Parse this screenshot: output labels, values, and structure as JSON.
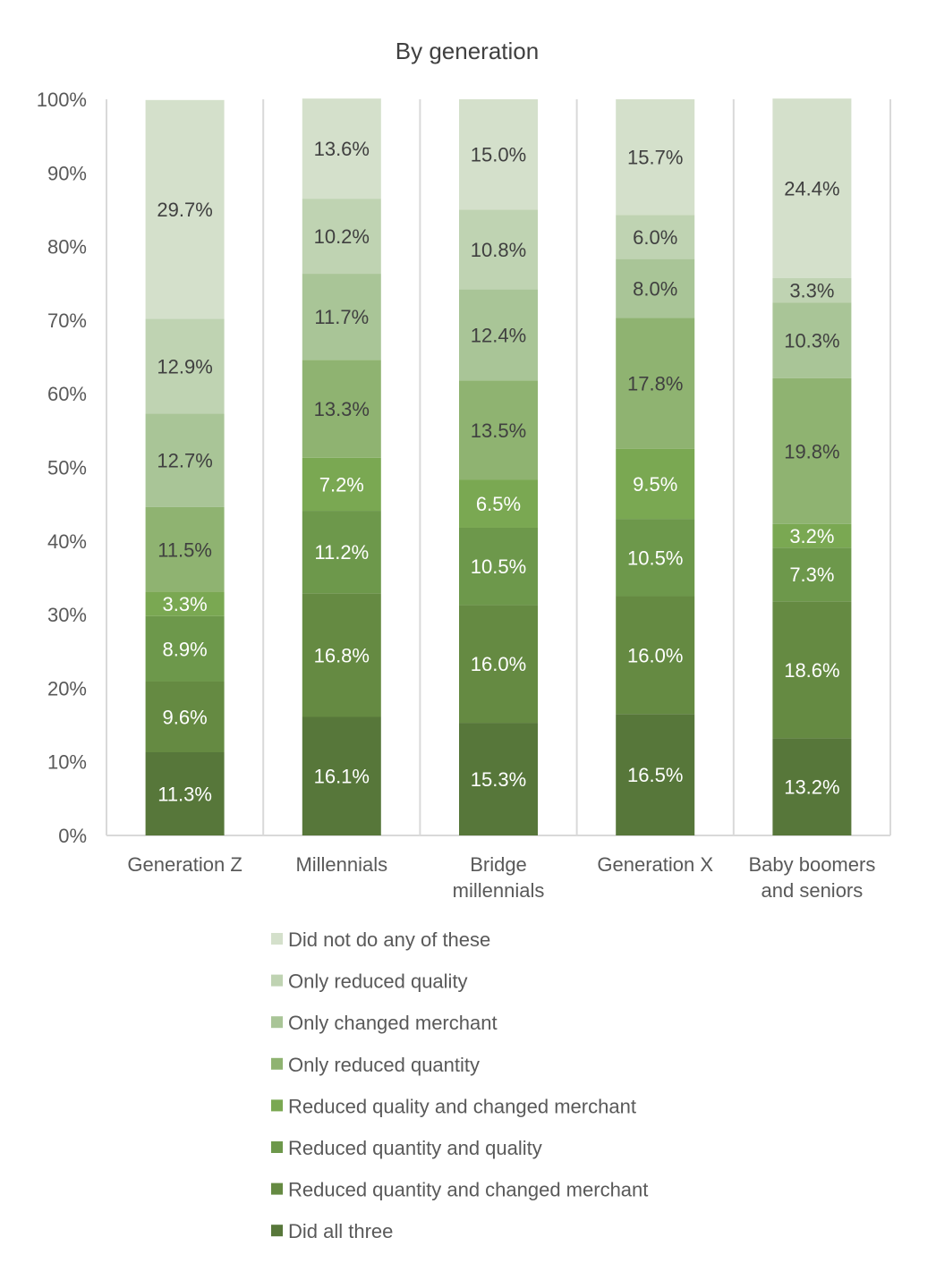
{
  "chart_data": {
    "type": "bar",
    "stacked": true,
    "orientation": "vertical",
    "title": "By generation",
    "xlabel": "",
    "ylabel": "",
    "ylim": [
      0,
      100
    ],
    "y_ticks": [
      "0%",
      "10%",
      "20%",
      "30%",
      "40%",
      "50%",
      "60%",
      "70%",
      "80%",
      "90%",
      "100%"
    ],
    "categories": [
      [
        "Generation Z"
      ],
      [
        "Millennials"
      ],
      [
        "Bridge",
        "millennials"
      ],
      [
        "Generation X"
      ],
      [
        "Baby boomers",
        "and seniors"
      ]
    ],
    "legend_position": "bottom",
    "series": [
      {
        "name": "Did all three",
        "color": "#57773a",
        "label_color": "#ffffff",
        "values": [
          11.3,
          16.1,
          15.3,
          16.5,
          13.2
        ],
        "labels": [
          "11.3%",
          "16.1%",
          "15.3%",
          "16.5%",
          "13.2%"
        ]
      },
      {
        "name": "Reduced quantity and changed merchant",
        "color": "#658a42",
        "label_color": "#ffffff",
        "values": [
          9.6,
          16.8,
          16.0,
          16.0,
          18.6
        ],
        "labels": [
          "9.6%",
          "16.8%",
          "16.0%",
          "16.0%",
          "18.6%"
        ]
      },
      {
        "name": "Reduced quantity and quality",
        "color": "#6d984b",
        "label_color": "#ffffff",
        "values": [
          8.9,
          11.2,
          10.5,
          10.5,
          7.3
        ],
        "labels": [
          "8.9%",
          "11.2%",
          "10.5%",
          "10.5%",
          "7.3%"
        ]
      },
      {
        "name": "Reduced quality and changed merchant",
        "color": "#7aa852",
        "label_color": "#ffffff",
        "values": [
          3.3,
          7.2,
          6.5,
          9.5,
          3.2
        ],
        "labels": [
          "3.3%",
          "7.2%",
          "6.5%",
          "9.5%",
          "3.2%"
        ]
      },
      {
        "name": "Only reduced quantity",
        "color": "#8fb371",
        "label_color": "#404040",
        "values": [
          11.5,
          13.3,
          13.5,
          17.8,
          19.8
        ],
        "labels": [
          "11.5%",
          "13.3%",
          "13.5%",
          "17.8%",
          "19.8%"
        ]
      },
      {
        "name": "Only changed merchant",
        "color": "#a9c597",
        "label_color": "#404040",
        "values": [
          12.7,
          11.7,
          12.4,
          8.0,
          10.3
        ],
        "labels": [
          "12.7%",
          "11.7%",
          "12.4%",
          "8.0%",
          "10.3%"
        ]
      },
      {
        "name": "Only reduced quality",
        "color": "#bfd3b2",
        "label_color": "#404040",
        "values": [
          12.9,
          10.2,
          10.8,
          6.0,
          3.3
        ],
        "labels": [
          "12.9%",
          "10.2%",
          "10.8%",
          "6.0%",
          "3.3%"
        ]
      },
      {
        "name": "Did not do any of these",
        "color": "#d4e0cb",
        "label_color": "#404040",
        "values": [
          29.7,
          13.6,
          15.0,
          15.7,
          24.4
        ],
        "labels": [
          "29.7%",
          "13.6%",
          "15.0%",
          "15.7%",
          "24.4%"
        ]
      }
    ],
    "legend_order": [
      "Did not do any of these",
      "Only reduced quality",
      "Only changed merchant",
      "Only reduced quantity",
      "Reduced quality and changed merchant",
      "Reduced quantity and quality",
      "Reduced quantity and changed merchant",
      "Did all three"
    ],
    "colors": {
      "gridline": "#d9d9d9",
      "axis_text": "#595959",
      "title_text": "#404040"
    }
  }
}
